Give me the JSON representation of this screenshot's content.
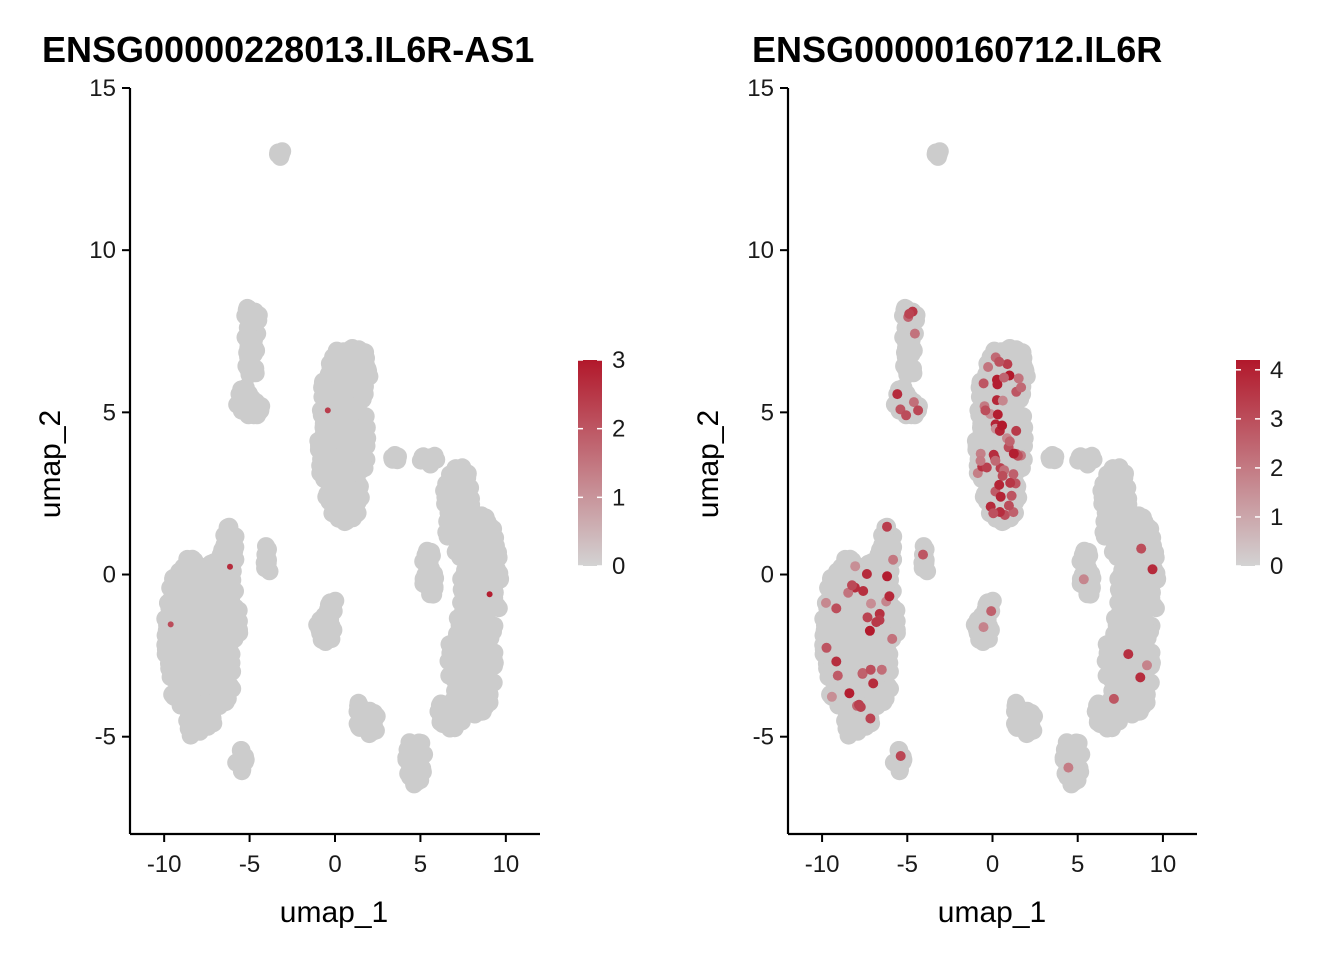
{
  "chart_data": [
    {
      "type": "scatter",
      "title": "ENSG00000228013.IL6R-AS1",
      "xlabel": "umap_1",
      "ylabel": "umap_2",
      "xlim": [
        -12,
        12
      ],
      "ylim": [
        -8,
        15
      ],
      "xticks": [
        -10,
        -5,
        0,
        5,
        10
      ],
      "xtick_labels": [
        "-10",
        "-5",
        "0",
        "5",
        "10"
      ],
      "yticks": [
        -5,
        0,
        5,
        10,
        15
      ],
      "ytick_labels": [
        "-5",
        "0",
        "5",
        "10",
        "15"
      ],
      "grid": false,
      "legend": {
        "placement": "right",
        "type": "colorbar",
        "min": 0,
        "max": 3,
        "ticks": [
          0,
          1,
          2,
          3
        ],
        "tick_labels": [
          "0",
          "1",
          "2",
          "3"
        ],
        "low_color": "#d3d3d3",
        "high_color": "#b2182b"
      },
      "expression_density": 0.004,
      "colors": {
        "base": "#cccccc",
        "high": "#b2182b"
      }
    },
    {
      "type": "scatter",
      "title": "ENSG00000160712.IL6R",
      "xlabel": "umap_1",
      "ylabel": "umap_2",
      "xlim": [
        -12,
        12
      ],
      "ylim": [
        -8,
        15
      ],
      "xticks": [
        -10,
        -5,
        0,
        5,
        10
      ],
      "xtick_labels": [
        "-10",
        "-5",
        "0",
        "5",
        "10"
      ],
      "yticks": [
        -5,
        0,
        5,
        10,
        15
      ],
      "ytick_labels": [
        "-5",
        "0",
        "5",
        "10",
        "15"
      ],
      "grid": false,
      "legend": {
        "placement": "right",
        "type": "colorbar",
        "min": 0,
        "max": 4.2,
        "ticks": [
          0,
          1,
          2,
          3,
          4
        ],
        "tick_labels": [
          "0",
          "1",
          "2",
          "3",
          "4"
        ],
        "low_color": "#d3d3d3",
        "high_color": "#b2182b"
      },
      "expression_density": 0.08,
      "colors": {
        "base": "#cccccc",
        "high": "#b2182b"
      }
    }
  ],
  "clusters": [
    {
      "kind": "ellipse",
      "cx": 0.5,
      "cy": 4.3,
      "rx": 1.55,
      "ry": 2.7,
      "n": 260,
      "expr": 0.35
    },
    {
      "kind": "ellipse",
      "cx": 1.1,
      "cy": 6.2,
      "rx": 1.0,
      "ry": 1.0,
      "n": 60,
      "expr": 0.3
    },
    {
      "kind": "ellipse",
      "cx": 0.6,
      "cy": 2.2,
      "rx": 0.9,
      "ry": 0.6,
      "n": 40,
      "expr": 0.2
    },
    {
      "kind": "ellipse",
      "cx": -8.5,
      "cy": -2.0,
      "rx": 1.5,
      "ry": 2.5,
      "n": 300,
      "expr": 0.14
    },
    {
      "kind": "ellipse",
      "cx": -6.7,
      "cy": -1.7,
      "rx": 1.1,
      "ry": 2.4,
      "n": 160,
      "expr": 0.14
    },
    {
      "kind": "ellipse",
      "cx": -6.2,
      "cy": 0.7,
      "rx": 0.5,
      "ry": 0.8,
      "n": 30,
      "expr": 0.12
    },
    {
      "kind": "ellipse",
      "cx": -8.1,
      "cy": -4.5,
      "rx": 1.0,
      "ry": 0.5,
      "n": 40,
      "expr": 0.12
    },
    {
      "kind": "ellipse",
      "cx": -5.5,
      "cy": -5.8,
      "rx": 0.3,
      "ry": 0.4,
      "n": 12,
      "expr": 0.2
    },
    {
      "kind": "ellipse",
      "cx": -4.9,
      "cy": 7.6,
      "rx": 0.55,
      "ry": 0.7,
      "n": 30,
      "expr": 0.2
    },
    {
      "kind": "ellipse",
      "cx": -4.9,
      "cy": 6.6,
      "rx": 0.35,
      "ry": 0.6,
      "n": 18,
      "expr": 0.15
    },
    {
      "kind": "ellipse",
      "cx": -5.0,
      "cy": 5.3,
      "rx": 0.75,
      "ry": 0.55,
      "n": 30,
      "expr": 0.15
    },
    {
      "kind": "ellipse",
      "cx": -3.2,
      "cy": 13.0,
      "rx": 0.15,
      "ry": 0.15,
      "n": 6,
      "expr": 0.0
    },
    {
      "kind": "ellipse",
      "cx": 7.2,
      "cy": 2.0,
      "rx": 0.9,
      "ry": 1.5,
      "n": 70,
      "expr": 0.04
    },
    {
      "kind": "ellipse",
      "cx": 8.5,
      "cy": -0.2,
      "rx": 1.2,
      "ry": 2.1,
      "n": 150,
      "expr": 0.05
    },
    {
      "kind": "ellipse",
      "cx": 8.0,
      "cy": -2.8,
      "rx": 1.4,
      "ry": 1.8,
      "n": 150,
      "expr": 0.05
    },
    {
      "kind": "ellipse",
      "cx": 5.5,
      "cy": 0.0,
      "rx": 0.4,
      "ry": 0.8,
      "n": 30,
      "expr": 0.04
    },
    {
      "kind": "ellipse",
      "cx": 6.8,
      "cy": -4.3,
      "rx": 0.9,
      "ry": 0.5,
      "n": 40,
      "expr": 0.04
    },
    {
      "kind": "ellipse",
      "cx": 4.7,
      "cy": -5.7,
      "rx": 0.55,
      "ry": 0.8,
      "n": 40,
      "expr": 0.08
    },
    {
      "kind": "ellipse",
      "cx": -0.6,
      "cy": -1.7,
      "rx": 0.55,
      "ry": 0.45,
      "n": 25,
      "expr": 0.08
    },
    {
      "kind": "ellipse",
      "cx": -0.2,
      "cy": -1.0,
      "rx": 0.3,
      "ry": 0.3,
      "n": 10,
      "expr": 0.1
    },
    {
      "kind": "ellipse",
      "cx": 2.2,
      "cy": -4.6,
      "rx": 0.3,
      "ry": 0.5,
      "n": 15,
      "expr": 0.1
    },
    {
      "kind": "ellipse",
      "cx": 1.4,
      "cy": -4.3,
      "rx": 0.2,
      "ry": 0.5,
      "n": 10,
      "expr": 0.1
    },
    {
      "kind": "ellipse",
      "cx": -4.0,
      "cy": 0.5,
      "rx": 0.35,
      "ry": 0.5,
      "n": 10,
      "expr": 0.1
    },
    {
      "kind": "ellipse",
      "cx": 3.5,
      "cy": 3.6,
      "rx": 0.2,
      "ry": 0.3,
      "n": 6,
      "expr": 0.0
    },
    {
      "kind": "ellipse",
      "cx": 5.5,
      "cy": 3.6,
      "rx": 0.5,
      "ry": 0.3,
      "n": 12,
      "expr": 0.0
    }
  ]
}
